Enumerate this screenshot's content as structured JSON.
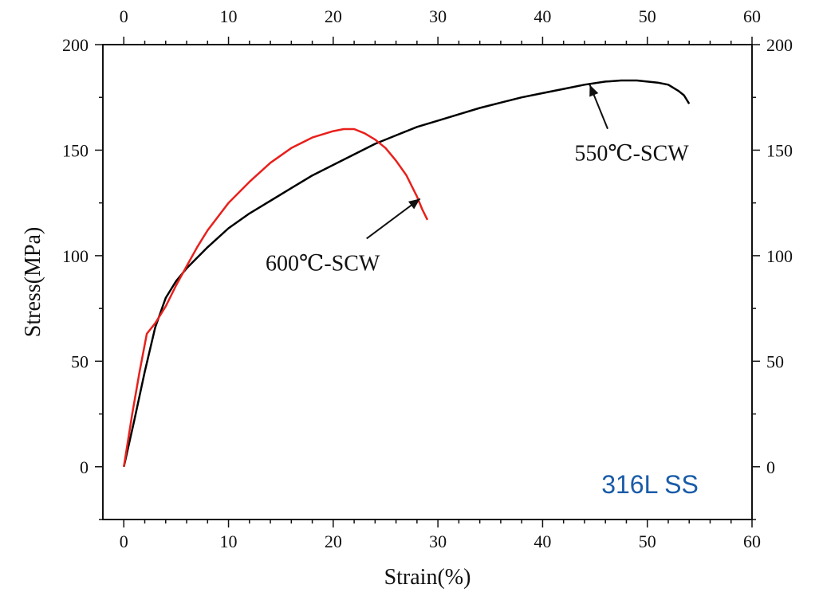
{
  "chart_data": {
    "type": "line",
    "xlabel": "Strain(%)",
    "ylabel": "Stress(MPa)",
    "xlim": [
      -2,
      60
    ],
    "ylim": [
      -25,
      200
    ],
    "x_ticks": [
      0,
      10,
      20,
      30,
      40,
      50,
      60
    ],
    "y_ticks": [
      0,
      50,
      100,
      150,
      200
    ],
    "secondary_axes": true,
    "grid": false,
    "series": [
      {
        "color": "#000000",
        "x": [
          0,
          1,
          2,
          3,
          4,
          5,
          6,
          8,
          10,
          12,
          14,
          16,
          18,
          20,
          22,
          24,
          26,
          28,
          30,
          32,
          34,
          36,
          38,
          40,
          42,
          44,
          46,
          47.5,
          49,
          50,
          51,
          52,
          53,
          53.5,
          54
        ],
        "y": [
          0,
          22,
          45,
          66,
          80,
          88,
          94,
          104,
          113,
          120,
          126,
          132,
          138,
          143,
          148,
          153,
          157,
          161,
          164,
          167,
          170,
          172.5,
          175,
          177,
          179,
          181,
          182.5,
          183,
          183,
          182.5,
          182,
          181,
          178,
          176,
          172
        ]
      },
      {
        "color": "#e8201c",
        "x": [
          0,
          0.8,
          1.5,
          2.2,
          3,
          4,
          5,
          6,
          7,
          8,
          10,
          12,
          14,
          16,
          18,
          20,
          21,
          22,
          23,
          24,
          25,
          26,
          27,
          27.5,
          28,
          28.5,
          29
        ],
        "y": [
          0,
          25,
          45,
          63,
          68,
          76,
          86,
          95,
          104,
          112,
          125,
          135,
          144,
          151,
          156,
          159,
          160,
          160,
          158,
          155,
          151,
          145,
          138,
          133,
          128,
          122,
          117
        ]
      }
    ],
    "annotations": [
      {
        "text": "550℃-SCW",
        "x": 48.5,
        "y": 145,
        "arrow_to": [
          44.5,
          181
        ]
      },
      {
        "text": "600℃-SCW",
        "x": 19,
        "y": 93,
        "arrow_to": [
          28.3,
          127
        ]
      }
    ]
  },
  "badge": {
    "text": "316L SS",
    "color": "#1a5ca8"
  }
}
